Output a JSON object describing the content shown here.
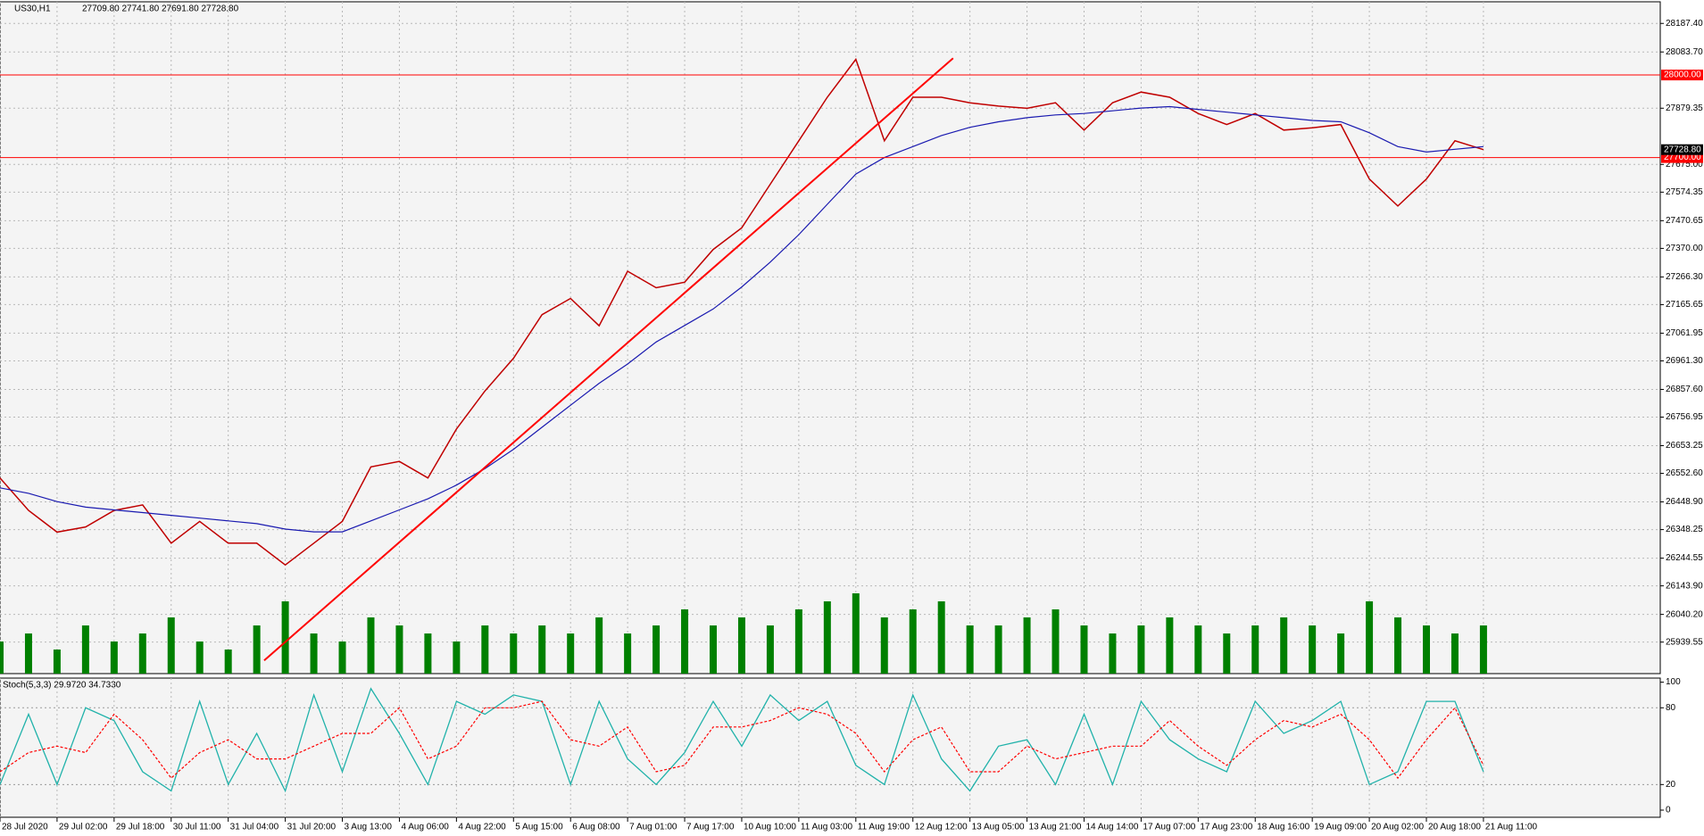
{
  "chart_data": {
    "type": "line",
    "title": "US30,H1",
    "quote": "27709.80 27741.80 27691.80 27728.80",
    "categories": [
      "28 Jul 2020",
      null,
      "29 Jul 02:00",
      null,
      "29 Jul 18:00",
      null,
      "30 Jul 11:00",
      null,
      "31 Jul 04:00",
      null,
      "31 Jul 20:00",
      null,
      "3 Aug 13:00",
      null,
      "4 Aug 06:00",
      null,
      "4 Aug 22:00",
      null,
      "5 Aug 15:00",
      null,
      "6 Aug 08:00",
      null,
      "7 Aug 01:00",
      null,
      "7 Aug 17:00",
      null,
      "10 Aug 10:00",
      null,
      "11 Aug 03:00",
      null,
      "11 Aug 19:00",
      null,
      "12 Aug 12:00",
      null,
      "13 Aug 05:00",
      null,
      "13 Aug 21:00",
      null,
      "14 Aug 14:00",
      null,
      "17 Aug 07:00",
      null,
      "17 Aug 23:00",
      null,
      "18 Aug 16:00",
      null,
      "19 Aug 09:00",
      null,
      "20 Aug 02:00",
      null,
      "20 Aug 18:00",
      null,
      "21 Aug 11:00"
    ],
    "series": [
      {
        "color": "#c00000",
        "values": [
          26536,
          26418,
          26339,
          26358,
          26418,
          26438,
          26299,
          26378,
          26299,
          26299,
          26220,
          26299,
          26378,
          26576,
          26596,
          26536,
          26714,
          26852,
          26971,
          27129,
          27188,
          27089,
          27287,
          27227,
          27247,
          27366,
          27445,
          27603,
          27761,
          27919,
          28057,
          27761,
          27919,
          27919,
          27899,
          27887,
          27879,
          27899,
          27800,
          27899,
          27938,
          27919,
          27860,
          27820,
          27860,
          27800,
          27808,
          27820,
          27622,
          27524,
          27622,
          27761,
          27729
        ]
      },
      {
        "color": "#1a1ab0",
        "values": [
          26500,
          26480,
          26450,
          26430,
          26420,
          26410,
          26400,
          26390,
          26380,
          26370,
          26350,
          26340,
          26340,
          26380,
          26420,
          26460,
          26510,
          26570,
          26640,
          26720,
          26800,
          26880,
          26950,
          27030,
          27090,
          27150,
          27230,
          27320,
          27420,
          27530,
          27640,
          27700,
          27740,
          27780,
          27810,
          27830,
          27845,
          27855,
          27860,
          27870,
          27880,
          27885,
          27875,
          27865,
          27855,
          27845,
          27835,
          27830,
          27790,
          27740,
          27720,
          27730,
          27740
        ]
      }
    ],
    "ylim": [
      25825,
      28266
    ],
    "yticks": [
      {
        "value": 25939.55,
        "label": "25939.55"
      },
      {
        "value": 26040.2,
        "label": "26040.20"
      },
      {
        "value": 26143.9,
        "label": "26143.90"
      },
      {
        "value": 26244.55,
        "label": "26244.55"
      },
      {
        "value": 26348.25,
        "label": "26348.25"
      },
      {
        "value": 26448.9,
        "label": "26448.90"
      },
      {
        "value": 26552.6,
        "label": "26552.60"
      },
      {
        "value": 26653.25,
        "label": "26653.25"
      },
      {
        "value": 26756.95,
        "label": "26756.95"
      },
      {
        "value": 26857.6,
        "label": "26857.60"
      },
      {
        "value": 26961.3,
        "label": "26961.30"
      },
      {
        "value": 27061.95,
        "label": "27061.95"
      },
      {
        "value": 27165.65,
        "label": "27165.65"
      },
      {
        "value": 27266.3,
        "label": "27266.30"
      },
      {
        "value": 27370,
        "label": "27370.00"
      },
      {
        "value": 27470.65,
        "label": "27470.65"
      },
      {
        "value": 27574.35,
        "label": "27574.35"
      },
      {
        "value": 27675,
        "label": "27675.00"
      },
      {
        "value": 27879.35,
        "label": "27879.35"
      },
      {
        "value": 28083.7,
        "label": "28083.70"
      },
      {
        "value": 28187.4,
        "label": "28187.40"
      }
    ],
    "grid": true,
    "hlines": [
      {
        "value": 28000,
        "label": "28000.00",
        "color": "#ff0000"
      },
      {
        "value": 27700,
        "label": "27700.00",
        "color": "#ff0000"
      }
    ],
    "current": {
      "value": 27728.8,
      "label": "27728.80",
      "color": "#000000"
    },
    "trendline": {
      "x": [
        9.26,
        33.41
      ],
      "y": [
        25873,
        28061
      ],
      "color": "#ff0000"
    },
    "volume": {
      "color": "#008000",
      "ylim": [
        0,
        100
      ],
      "values": [
        20,
        25,
        15,
        30,
        20,
        25,
        35,
        20,
        15,
        30,
        45,
        25,
        20,
        35,
        30,
        25,
        20,
        30,
        25,
        30,
        25,
        35,
        25,
        30,
        40,
        30,
        35,
        30,
        40,
        45,
        50,
        35,
        40,
        45,
        30,
        30,
        35,
        40,
        30,
        25,
        30,
        35,
        30,
        25,
        30,
        35,
        30,
        25,
        45,
        35,
        30,
        25,
        30
      ]
    },
    "stochastic": {
      "title": "Stoch(5,3,3) 29.9720 34.7330",
      "ylim": [
        0,
        100
      ],
      "yticks": [
        0,
        20,
        80,
        100
      ],
      "levels": [
        20,
        80
      ],
      "k": {
        "color": "#20b2aa",
        "values": [
          20,
          75,
          20,
          80,
          70,
          30,
          15,
          85,
          20,
          60,
          15,
          90,
          30,
          95,
          60,
          20,
          85,
          75,
          90,
          85,
          20,
          85,
          40,
          20,
          45,
          85,
          50,
          90,
          70,
          85,
          35,
          20,
          90,
          40,
          15,
          50,
          55,
          20,
          75,
          20,
          85,
          55,
          40,
          30,
          85,
          60,
          70,
          85,
          20,
          30,
          85,
          85,
          30
        ]
      },
      "d": {
        "color": "#ff0000",
        "values": [
          30,
          45,
          50,
          45,
          75,
          55,
          25,
          45,
          55,
          40,
          40,
          50,
          60,
          60,
          80,
          40,
          50,
          80,
          80,
          85,
          55,
          50,
          65,
          30,
          35,
          65,
          65,
          70,
          80,
          75,
          60,
          30,
          55,
          65,
          30,
          30,
          50,
          40,
          45,
          50,
          50,
          70,
          50,
          35,
          55,
          70,
          65,
          75,
          55,
          25,
          55,
          80,
          35
        ]
      }
    }
  }
}
